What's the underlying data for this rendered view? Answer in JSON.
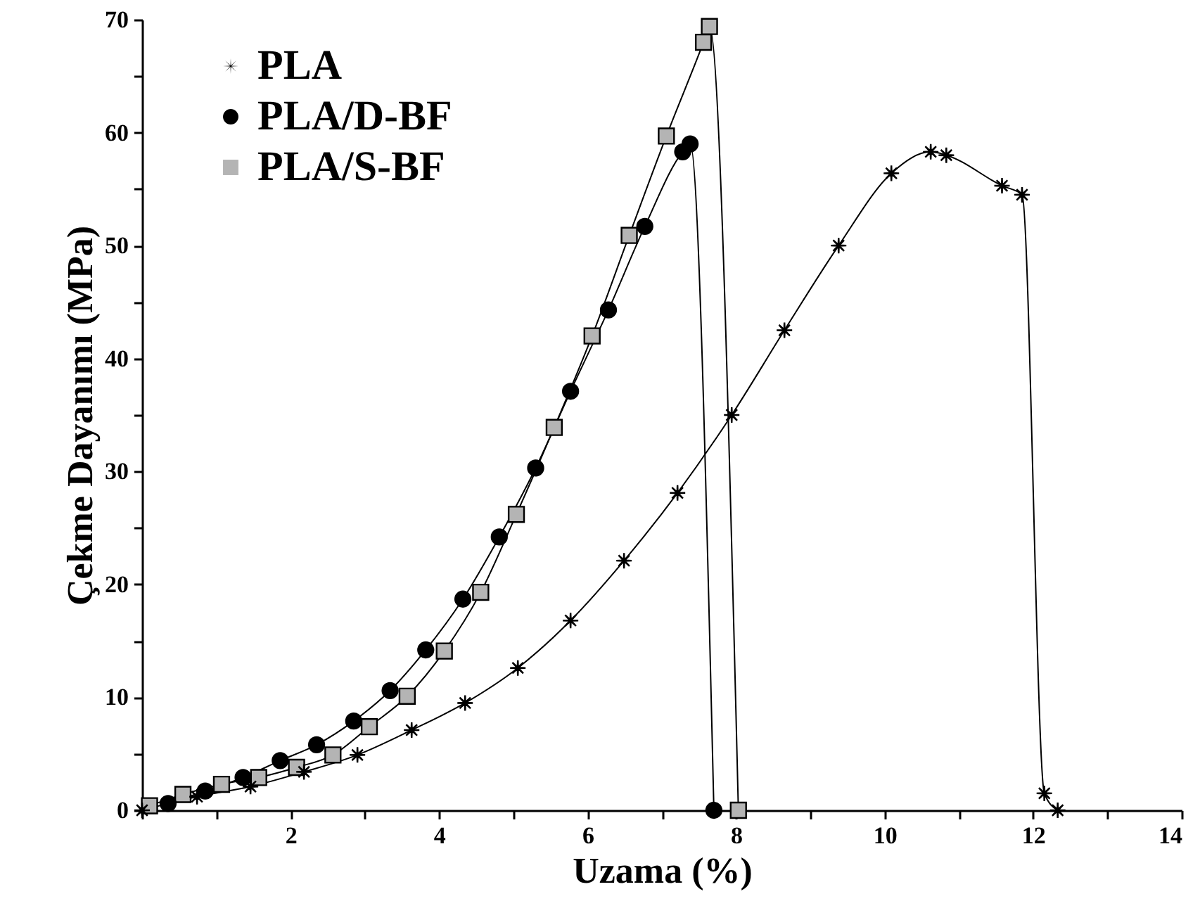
{
  "chart_data": {
    "type": "line",
    "xlabel": "Uzama (%)",
    "ylabel": "Çekme Dayanımı (MPa)",
    "xlim": [
      0,
      14
    ],
    "ylim": [
      0,
      70
    ],
    "xticks": [
      {
        "value": 0,
        "label": null
      },
      {
        "value": 1,
        "label": null
      },
      2,
      {
        "value": 3,
        "label": null
      },
      4,
      {
        "value": 5,
        "label": null
      },
      6,
      {
        "value": 7,
        "label": null
      },
      8,
      {
        "value": 9,
        "label": null
      },
      10,
      {
        "value": 11,
        "label": null
      },
      12,
      {
        "value": 13,
        "label": null
      },
      14
    ],
    "yticks": [
      0,
      {
        "value": 5,
        "label": null
      },
      10,
      {
        "value": 15,
        "label": null
      },
      20,
      {
        "value": 25,
        "label": null
      },
      30,
      {
        "value": 35,
        "label": null
      },
      40,
      {
        "value": 45,
        "label": null
      },
      50,
      {
        "value": 55,
        "label": null
      },
      60,
      {
        "value": 65,
        "label": null
      },
      70
    ],
    "legend": "top left",
    "line_style": "solid",
    "series": [
      {
        "name": "PLA",
        "color": "#000000",
        "marker": "cross",
        "x": [
          0.0,
          0.74,
          1.46,
          2.18,
          2.9,
          3.63,
          4.35,
          5.06,
          5.77,
          6.49,
          7.21,
          7.94,
          8.65,
          9.38,
          10.09,
          10.62,
          10.83,
          11.58,
          11.85,
          12.15,
          12.33
        ],
        "values": [
          0.0,
          1.2,
          2.1,
          3.4,
          4.9,
          7.1,
          9.5,
          12.6,
          16.8,
          22.1,
          28.1,
          35.0,
          42.5,
          50.0,
          56.4,
          58.3,
          58.0,
          55.3,
          54.5,
          1.5,
          0.0
        ]
      },
      {
        "name": "PLA/D-BF",
        "color": "#000000",
        "marker": "circle",
        "x": [
          0.35,
          0.85,
          1.36,
          1.86,
          2.35,
          2.85,
          3.34,
          3.82,
          4.32,
          4.81,
          5.3,
          5.77,
          6.28,
          6.77,
          7.28,
          7.38,
          7.7
        ],
        "values": [
          0.6,
          1.7,
          2.9,
          4.4,
          5.8,
          7.9,
          10.6,
          14.2,
          18.7,
          24.2,
          30.3,
          37.1,
          44.3,
          51.7,
          58.3,
          59.0,
          0.0
        ]
      },
      {
        "name": "PLA/S-BF",
        "color": "#b4b4b4",
        "marker": "square",
        "x": [
          0.1,
          0.55,
          1.07,
          1.57,
          2.08,
          2.57,
          3.06,
          3.57,
          4.07,
          4.56,
          5.04,
          5.55,
          6.06,
          6.56,
          7.06,
          7.56,
          7.64,
          8.03
        ],
        "values": [
          0.4,
          1.4,
          2.3,
          2.9,
          3.8,
          4.9,
          7.4,
          10.1,
          14.1,
          19.3,
          26.2,
          33.9,
          42.0,
          50.9,
          59.7,
          68.0,
          69.4,
          0.0
        ]
      }
    ]
  }
}
